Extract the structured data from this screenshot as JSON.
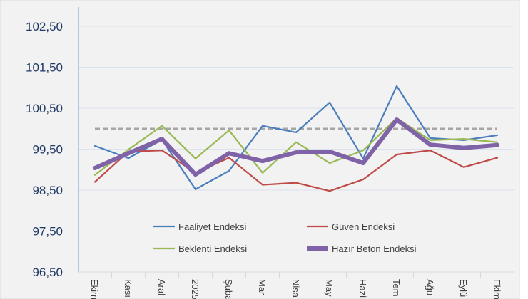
{
  "chart_data": {
    "type": "line",
    "title": "",
    "xlabel": "",
    "ylabel": "",
    "categories": [
      "Ekim",
      "Kası",
      "Aral",
      "2025",
      "Şuba",
      "Mar",
      "Nisa",
      "May",
      "Hazi",
      "Tem",
      "Ağu",
      "Eylü",
      "Ekim"
    ],
    "ylim": [
      96.5,
      102.8
    ],
    "yticks": [
      "96,50",
      "97,50",
      "98,50",
      "99,50",
      "100,50",
      "101,50",
      "102,50"
    ],
    "ytick_values": [
      96.5,
      97.5,
      98.5,
      99.5,
      100.5,
      101.5,
      102.5
    ],
    "grid": true,
    "reference_line": {
      "value": 100,
      "style": "dashed",
      "color": "#a6a6a6"
    },
    "legend_position": "bottom-inside",
    "series": [
      {
        "name": "Faaliyet Endeksi",
        "color": "#4a7ebb",
        "width": 2.2,
        "values": [
          99.58,
          99.28,
          99.73,
          98.52,
          98.97,
          100.07,
          99.91,
          100.64,
          99.27,
          101.04,
          99.77,
          99.72,
          99.84
        ]
      },
      {
        "name": "Güven Endeksi",
        "color": "#be4b48",
        "width": 2.2,
        "values": [
          98.7,
          99.44,
          99.47,
          98.92,
          99.29,
          98.63,
          98.68,
          98.48,
          98.76,
          99.37,
          99.47,
          99.06,
          99.29
        ]
      },
      {
        "name": "Beklenti Endeksi",
        "color": "#98b954",
        "width": 2.2,
        "values": [
          98.87,
          99.49,
          100.07,
          99.27,
          99.96,
          98.92,
          99.67,
          99.16,
          99.47,
          100.26,
          99.72,
          99.75,
          99.67
        ]
      },
      {
        "name": "Hazır Beton Endeksi",
        "color": "#7f62a8",
        "width": 6,
        "values": [
          99.04,
          99.4,
          99.75,
          98.88,
          99.4,
          99.21,
          99.42,
          99.44,
          99.16,
          100.22,
          99.61,
          99.53,
          99.6
        ]
      }
    ]
  }
}
